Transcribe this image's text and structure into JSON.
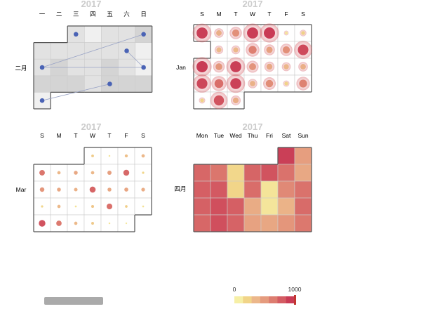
{
  "colors": {
    "grey_light": "#f0f0f0",
    "grey_mid": "#e2e2e2",
    "grey_dark": "#d4d4d4",
    "scatter_blue": "#4a63b5",
    "arrow": "#9aa4c6",
    "cell_border": "#cccccc",
    "month_border": "#555555",
    "ramp": [
      "#f6efa6",
      "#f1d488",
      "#ecb78a",
      "#e59b7e",
      "#dd7d70",
      "#d45c63",
      "#c93b55"
    ]
  },
  "chart_data": [
    {
      "id": "top-left",
      "type": "calendar-effect-scatter-lines",
      "year_label": "2017",
      "month_label": "二月",
      "weekday_labels": [
        "一",
        "二",
        "三",
        "四",
        "五",
        "六",
        "日"
      ],
      "cells": [
        [
          null,
          null,
          "mid",
          "light",
          "mid",
          "mid",
          "dark"
        ],
        [
          "mid",
          "mid",
          "mid",
          "mid",
          "mid",
          "mid",
          "light"
        ],
        [
          "mid",
          "dark",
          "mid",
          "mid",
          "dark",
          "mid",
          "light"
        ],
        [
          "dark",
          "dark",
          "dark",
          "mid",
          "dark",
          "dark",
          "dark"
        ],
        [
          "light",
          null,
          null,
          null,
          null,
          null,
          null
        ]
      ],
      "points": [
        {
          "date": "2017-02-01",
          "row": 0,
          "col": 2
        },
        {
          "date": "2017-02-05",
          "row": 0,
          "col": 6
        },
        {
          "date": "2017-02-11",
          "row": 1,
          "col": 5
        },
        {
          "date": "2017-02-13",
          "row": 2,
          "col": 0
        },
        {
          "date": "2017-02-19",
          "row": 2,
          "col": 6
        },
        {
          "date": "2017-02-24",
          "row": 3,
          "col": 4
        },
        {
          "date": "2017-02-27",
          "row": 4,
          "col": 0
        }
      ],
      "lines": [
        {
          "from": 1,
          "to": 3
        },
        {
          "from": 2,
          "to": 4
        },
        {
          "from": 6,
          "to": 5
        },
        {
          "from": 3,
          "to": 4
        }
      ]
    },
    {
      "id": "top-right",
      "type": "calendar-effect-scatter",
      "year_label": "2017",
      "month_label": "Jan",
      "weekday_labels": [
        "S",
        "M",
        "T",
        "W",
        "T",
        "F",
        "S"
      ],
      "max_value": 1000,
      "cells": [
        [
          980,
          380,
          560,
          990,
          1000,
          70,
          190
        ],
        [
          null,
          320,
          330,
          650,
          470,
          560,
          930
        ],
        [
          1000,
          520,
          980,
          540,
          420,
          340,
          380
        ],
        [
          940,
          740,
          970,
          370,
          580,
          170,
          640
        ],
        [
          170,
          880,
          400,
          null,
          null,
          null,
          null
        ]
      ]
    },
    {
      "id": "bottom-left",
      "type": "calendar-scatter",
      "year_label": "2017",
      "month_label": "Mar",
      "weekday_labels": [
        "S",
        "M",
        "T",
        "W",
        "T",
        "F",
        "S"
      ],
      "max_value": 1000,
      "cells": [
        [
          null,
          null,
          null,
          220,
          60,
          280,
          330
        ],
        [
          700,
          330,
          420,
          330,
          470,
          770,
          150
        ],
        [
          530,
          420,
          370,
          790,
          420,
          440,
          390
        ],
        [
          150,
          320,
          80,
          250,
          730,
          200,
          80
        ],
        [
          880,
          680,
          320,
          230,
          60,
          50,
          null
        ]
      ]
    },
    {
      "id": "bottom-right",
      "type": "calendar-heatmap",
      "year_label": "2017",
      "month_label": "四月",
      "weekday_labels": [
        "Mon",
        "Tue",
        "Wed",
        "Thu",
        "Fri",
        "Sat",
        "Sun"
      ],
      "max_value": 1000,
      "cells": [
        [
          null,
          null,
          null,
          null,
          null,
          980,
          480
        ],
        [
          780,
          700,
          150,
          790,
          880,
          720,
          420
        ],
        [
          820,
          850,
          160,
          750,
          70,
          600,
          720
        ],
        [
          810,
          900,
          820,
          400,
          60,
          360,
          760
        ],
        [
          780,
          900,
          800,
          460,
          430,
          530,
          690
        ]
      ]
    }
  ],
  "visual_map": {
    "min_label": "0",
    "max_label": "1000",
    "handle_color": "#c23531"
  }
}
